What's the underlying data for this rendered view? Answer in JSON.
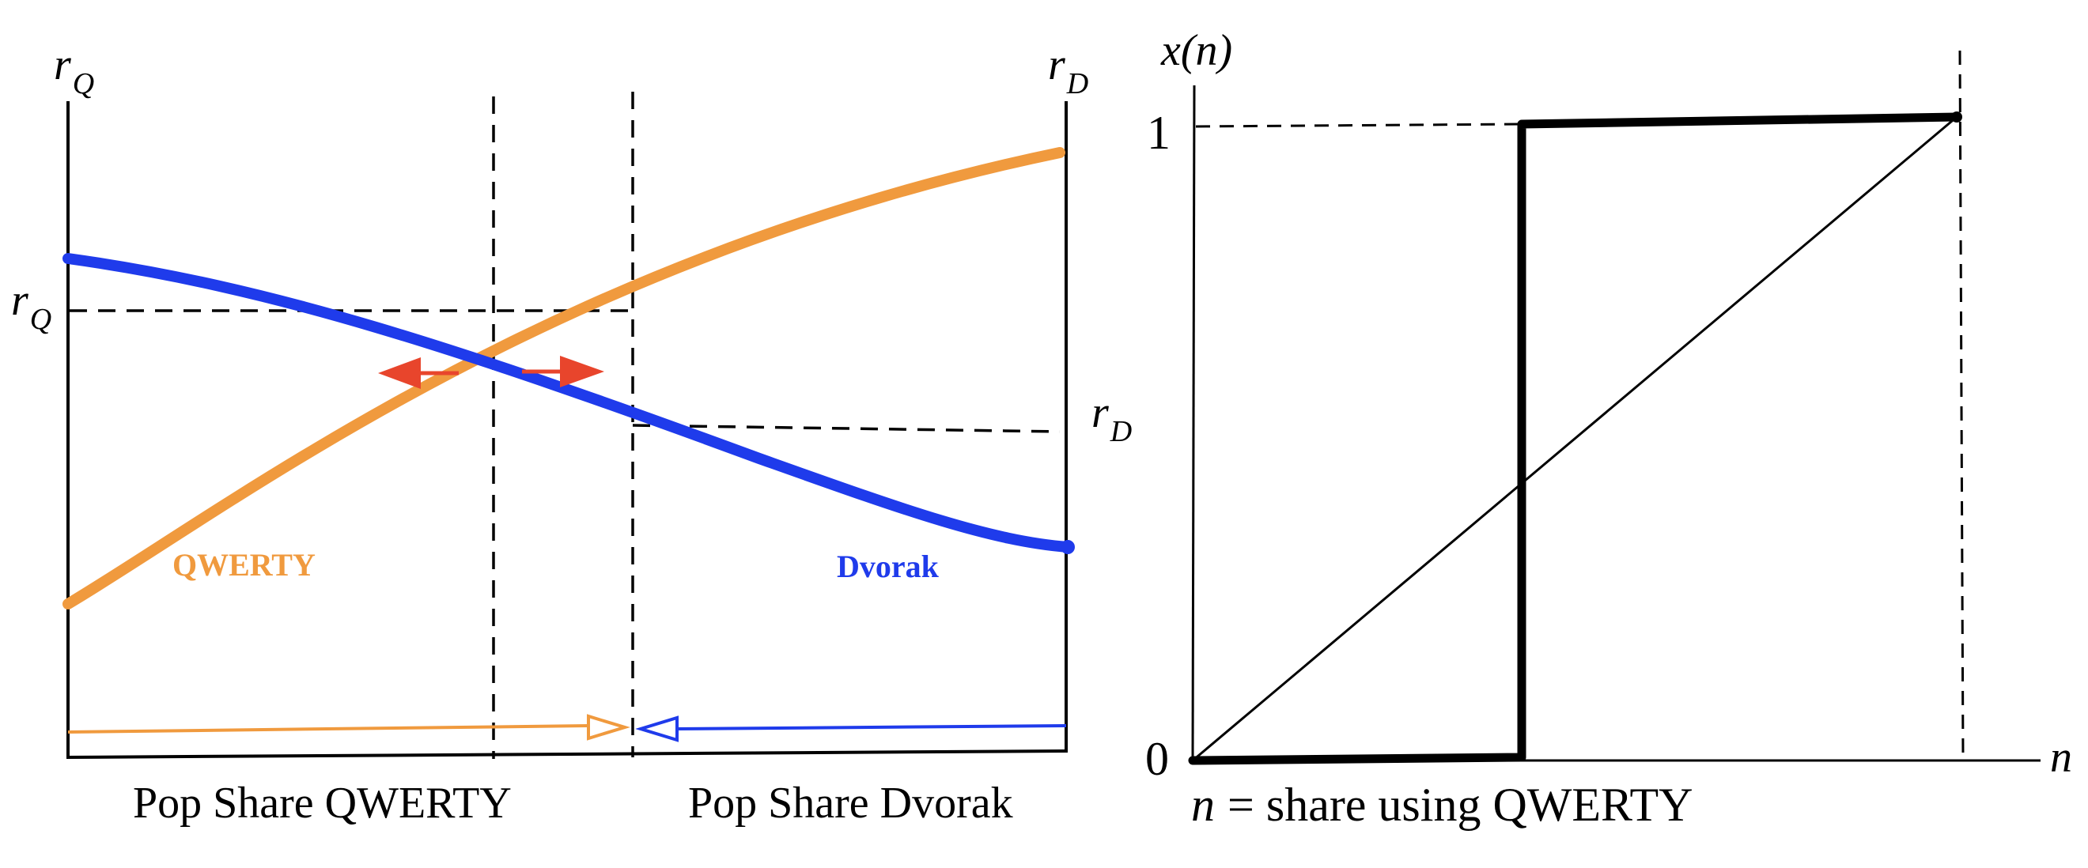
{
  "left_panel": {
    "left_axis_label": {
      "main": "r",
      "sub": "Q"
    },
    "right_axis_label": {
      "main": "r",
      "sub": "D"
    },
    "rq_level_label": {
      "main": "r",
      "sub": "Q"
    },
    "rd_level_label": {
      "main": "r",
      "sub": "D"
    },
    "qwerty_curve_label": "QWERTY",
    "dvorak_curve_label": "Dvorak",
    "x_label_left": "Pop Share QWERTY",
    "x_label_right": "Pop Share Dvorak"
  },
  "right_panel": {
    "y_axis_label": "x(n)",
    "x_axis_label": "n",
    "tick_one": "1",
    "tick_zero": "0",
    "caption_var": "n",
    "caption_text": "= share using QWERTY"
  },
  "colors": {
    "qwerty": "#F09A3E",
    "dvorak": "#1F3BEB",
    "arrow_red": "#E8452C",
    "ink": "#000000"
  },
  "icons": {
    "instability_left": "arrow-left-icon",
    "instability_right": "arrow-right-icon",
    "share_arrow_qwerty": "open-triangle-arrow-right-icon",
    "share_arrow_dvorak": "open-triangle-arrow-left-icon"
  }
}
